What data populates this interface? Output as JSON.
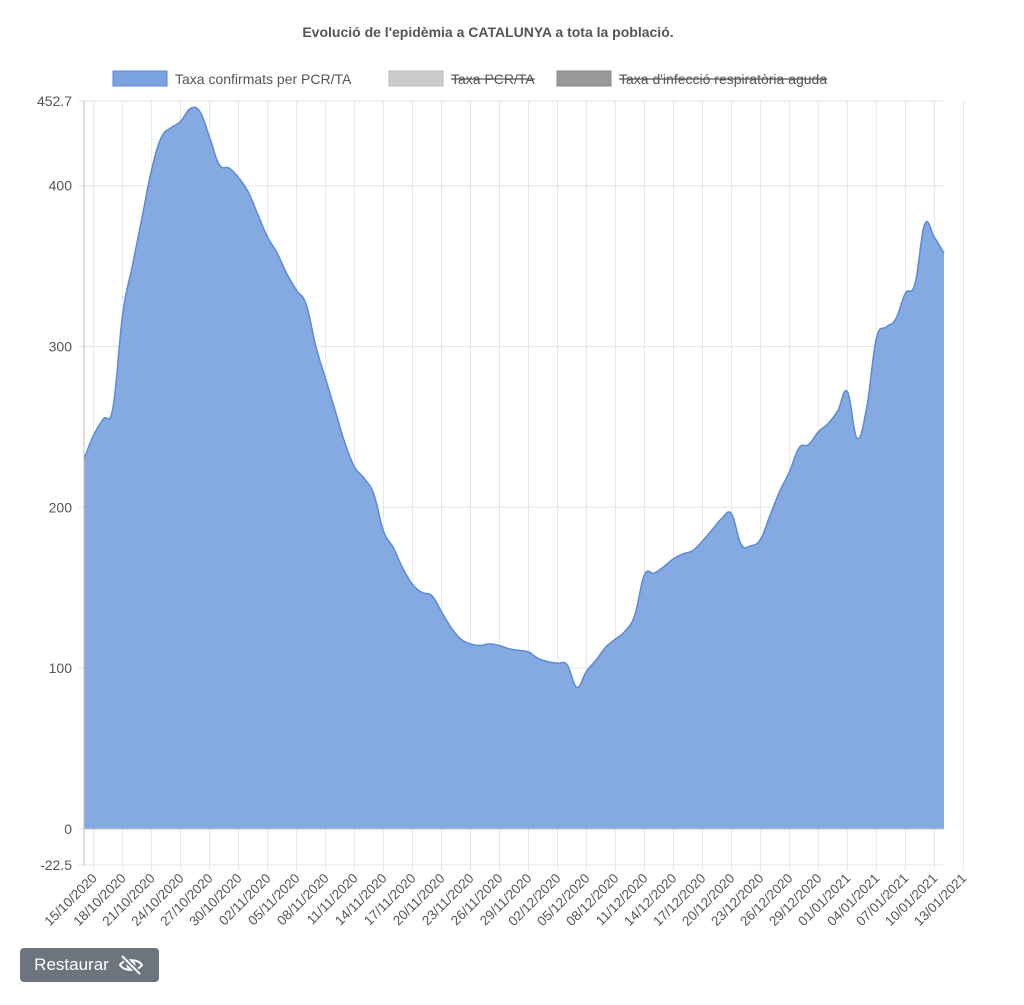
{
  "chart_data": {
    "type": "area",
    "title": "Evolució de l'epidèmia a CATALUNYA a tota la població.",
    "legend": [
      {
        "name": "Taxa confirmats per PCR/TA",
        "color": "#7ba3e0",
        "border": "#5b8ad8",
        "hidden": false
      },
      {
        "name": "Taxa PCR/TA",
        "color": "#cccccc",
        "border": "#bbbbbb",
        "hidden": true
      },
      {
        "name": "Taxa d'infecció respiratòria aguda",
        "color": "#999999",
        "border": "#888888",
        "hidden": true
      }
    ],
    "legend_position": "top",
    "ylim": [
      -22.5,
      452.7
    ],
    "y_ticks": [
      "452.7",
      "400",
      "300",
      "200",
      "100",
      "0",
      "-22.5"
    ],
    "x_tick_labels": [
      "15/10/2020",
      "18/10/2020",
      "21/10/2020",
      "24/10/2020",
      "27/10/2020",
      "30/10/2020",
      "02/11/2020",
      "05/11/2020",
      "08/11/2020",
      "11/11/2020",
      "14/11/2020",
      "17/11/2020",
      "20/11/2020",
      "23/11/2020",
      "26/11/2020",
      "29/11/2020",
      "02/12/2020",
      "05/12/2020",
      "08/12/2020",
      "11/12/2020",
      "14/12/2020",
      "17/12/2020",
      "20/12/2020",
      "23/12/2020",
      "26/12/2020",
      "29/12/2020",
      "01/01/2021",
      "04/01/2021",
      "07/01/2021",
      "10/01/2021",
      "13/01/2021"
    ],
    "grid": true,
    "series": [
      {
        "name": "Taxa confirmats per PCR/TA",
        "color": "#7ba3e0",
        "points": [
          [
            "14/10/2020",
            230
          ],
          [
            "15/10/2020",
            245
          ],
          [
            "16/10/2020",
            255
          ],
          [
            "17/10/2020",
            262
          ],
          [
            "18/10/2020",
            320
          ],
          [
            "19/10/2020",
            350
          ],
          [
            "20/10/2020",
            380
          ],
          [
            "21/10/2020",
            410
          ],
          [
            "22/10/2020",
            430
          ],
          [
            "23/10/2020",
            436
          ],
          [
            "24/10/2020",
            440
          ],
          [
            "25/10/2020",
            448
          ],
          [
            "26/10/2020",
            446
          ],
          [
            "27/10/2020",
            430
          ],
          [
            "28/10/2020",
            413
          ],
          [
            "29/10/2020",
            411
          ],
          [
            "30/10/2020",
            405
          ],
          [
            "31/10/2020",
            396
          ],
          [
            "01/11/2020",
            382
          ],
          [
            "02/11/2020",
            368
          ],
          [
            "03/11/2020",
            358
          ],
          [
            "04/11/2020",
            345
          ],
          [
            "05/11/2020",
            335
          ],
          [
            "06/11/2020",
            326
          ],
          [
            "07/11/2020",
            300
          ],
          [
            "08/11/2020",
            280
          ],
          [
            "09/11/2020",
            260
          ],
          [
            "10/11/2020",
            240
          ],
          [
            "11/11/2020",
            225
          ],
          [
            "12/11/2020",
            218
          ],
          [
            "13/11/2020",
            208
          ],
          [
            "14/11/2020",
            185
          ],
          [
            "15/11/2020",
            175
          ],
          [
            "16/11/2020",
            162
          ],
          [
            "17/11/2020",
            152
          ],
          [
            "18/11/2020",
            147
          ],
          [
            "19/11/2020",
            145
          ],
          [
            "20/11/2020",
            135
          ],
          [
            "21/11/2020",
            125
          ],
          [
            "22/11/2020",
            118
          ],
          [
            "23/11/2020",
            115
          ],
          [
            "24/11/2020",
            114
          ],
          [
            "25/11/2020",
            115
          ],
          [
            "26/11/2020",
            114
          ],
          [
            "27/11/2020",
            112
          ],
          [
            "28/11/2020",
            111
          ],
          [
            "29/11/2020",
            110
          ],
          [
            "30/11/2020",
            106
          ],
          [
            "01/12/2020",
            104
          ],
          [
            "02/12/2020",
            103
          ],
          [
            "03/12/2020",
            102
          ],
          [
            "04/12/2020",
            88
          ],
          [
            "05/12/2020",
            98
          ],
          [
            "06/12/2020",
            105
          ],
          [
            "07/12/2020",
            113
          ],
          [
            "08/12/2020",
            118
          ],
          [
            "09/12/2020",
            123
          ],
          [
            "10/12/2020",
            133
          ],
          [
            "11/12/2020",
            158
          ],
          [
            "12/12/2020",
            159
          ],
          [
            "13/12/2020",
            163
          ],
          [
            "14/12/2020",
            168
          ],
          [
            "15/12/2020",
            171
          ],
          [
            "16/12/2020",
            173
          ],
          [
            "17/12/2020",
            179
          ],
          [
            "18/12/2020",
            186
          ],
          [
            "19/12/2020",
            193
          ],
          [
            "20/12/2020",
            196
          ],
          [
            "21/12/2020",
            177
          ],
          [
            "22/12/2020",
            176
          ],
          [
            "23/12/2020",
            180
          ],
          [
            "24/12/2020",
            195
          ],
          [
            "25/12/2020",
            210
          ],
          [
            "26/12/2020",
            222
          ],
          [
            "27/12/2020",
            237
          ],
          [
            "28/12/2020",
            239
          ],
          [
            "29/12/2020",
            247
          ],
          [
            "30/12/2020",
            252
          ],
          [
            "31/12/2020",
            260
          ],
          [
            "01/01/2021",
            272
          ],
          [
            "02/01/2021",
            243
          ],
          [
            "03/01/2021",
            262
          ],
          [
            "04/01/2021",
            305
          ],
          [
            "05/01/2021",
            312
          ],
          [
            "06/01/2021",
            317
          ],
          [
            "07/01/2021",
            333
          ],
          [
            "08/01/2021",
            339
          ],
          [
            "09/01/2021",
            376
          ],
          [
            "10/01/2021",
            368
          ],
          [
            "11/01/2021",
            358
          ]
        ]
      }
    ]
  },
  "restore_button": {
    "label": "Restaurar",
    "icon": "eye-slash-icon"
  }
}
